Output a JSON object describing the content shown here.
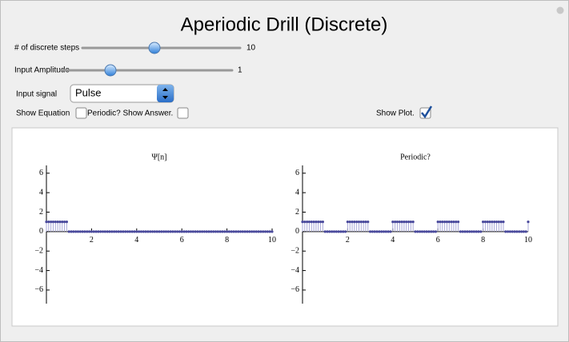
{
  "title": "Aperiodic Drill (Discrete)",
  "controls": {
    "steps_label": "# of discrete steps",
    "steps_value": 10,
    "amplitude_label": "Input Amplitude",
    "amplitude_value": 1,
    "signal_label": "Input signal",
    "signal_value": "Pulse",
    "show_equation": "Show Equation",
    "show_equation_checked": false,
    "periodic": "Periodic? Show Answer.",
    "periodic_checked": false,
    "show_plot": "Show Plot.",
    "show_plot_checked": true
  },
  "chart_data": [
    {
      "type": "stem",
      "title": "Ψ[n]",
      "color": "#4a4a9c",
      "stem_color": "#a8a8d8",
      "x": [
        0,
        0.1,
        0.2,
        0.3,
        0.4,
        0.5,
        0.6,
        0.7,
        0.8,
        0.9,
        1,
        1.1,
        1.2,
        1.3,
        1.4,
        1.5,
        1.6,
        1.7,
        1.8,
        1.9,
        2,
        2.1,
        2.2,
        2.3,
        2.4,
        2.5,
        2.6,
        2.7,
        2.8,
        2.9,
        3,
        3.1,
        3.2,
        3.3,
        3.4,
        3.5,
        3.6,
        3.7,
        3.8,
        3.9,
        4,
        4.1,
        4.2,
        4.3,
        4.4,
        4.5,
        4.6,
        4.7,
        4.8,
        4.9,
        5,
        5.1,
        5.2,
        5.3,
        5.4,
        5.5,
        5.6,
        5.7,
        5.8,
        5.9,
        6,
        6.1,
        6.2,
        6.3,
        6.4,
        6.5,
        6.6,
        6.7,
        6.8,
        6.9,
        7,
        7.1,
        7.2,
        7.3,
        7.4,
        7.5,
        7.6,
        7.7,
        7.8,
        7.9,
        8,
        8.1,
        8.2,
        8.3,
        8.4,
        8.5,
        8.6,
        8.7,
        8.8,
        8.9,
        9,
        9.1,
        9.2,
        9.3,
        9.4,
        9.5,
        9.6,
        9.7,
        9.8,
        9.9,
        10
      ],
      "values": [
        1,
        1,
        1,
        1,
        1,
        1,
        1,
        1,
        1,
        1,
        0,
        0,
        0,
        0,
        0,
        0,
        0,
        0,
        0,
        0,
        0,
        0,
        0,
        0,
        0,
        0,
        0,
        0,
        0,
        0,
        0,
        0,
        0,
        0,
        0,
        0,
        0,
        0,
        0,
        0,
        0,
        0,
        0,
        0,
        0,
        0,
        0,
        0,
        0,
        0,
        0,
        0,
        0,
        0,
        0,
        0,
        0,
        0,
        0,
        0,
        0,
        0,
        0,
        0,
        0,
        0,
        0,
        0,
        0,
        0,
        0,
        0,
        0,
        0,
        0,
        0,
        0,
        0,
        0,
        0,
        0,
        0,
        0,
        0,
        0,
        0,
        0,
        0,
        0,
        0,
        0,
        0,
        0,
        0,
        0,
        0,
        0,
        0,
        0,
        0,
        0
      ],
      "xlim": [
        0,
        10
      ],
      "ylim": [
        -7.4,
        6.8
      ],
      "xticks": [
        2,
        4,
        6,
        8,
        10
      ],
      "yticks": [
        {
          "value": -6,
          "label": "−6"
        },
        {
          "value": -4,
          "label": "−4"
        },
        {
          "value": -2,
          "label": "−2"
        },
        0,
        2,
        4,
        6
      ]
    },
    {
      "type": "stem",
      "title": "Periodic?",
      "color": "#4a4a9c",
      "stem_color": "#a8a8d8",
      "x": [
        0,
        0.1,
        0.2,
        0.3,
        0.4,
        0.5,
        0.6,
        0.7,
        0.8,
        0.9,
        1,
        1.1,
        1.2,
        1.3,
        1.4,
        1.5,
        1.6,
        1.7,
        1.8,
        1.9,
        2,
        2.1,
        2.2,
        2.3,
        2.4,
        2.5,
        2.6,
        2.7,
        2.8,
        2.9,
        3,
        3.1,
        3.2,
        3.3,
        3.4,
        3.5,
        3.6,
        3.7,
        3.8,
        3.9,
        4,
        4.1,
        4.2,
        4.3,
        4.4,
        4.5,
        4.6,
        4.7,
        4.8,
        4.9,
        5,
        5.1,
        5.2,
        5.3,
        5.4,
        5.5,
        5.6,
        5.7,
        5.8,
        5.9,
        6,
        6.1,
        6.2,
        6.3,
        6.4,
        6.5,
        6.6,
        6.7,
        6.8,
        6.9,
        7,
        7.1,
        7.2,
        7.3,
        7.4,
        7.5,
        7.6,
        7.7,
        7.8,
        7.9,
        8,
        8.1,
        8.2,
        8.3,
        8.4,
        8.5,
        8.6,
        8.7,
        8.8,
        8.9,
        9,
        9.1,
        9.2,
        9.3,
        9.4,
        9.5,
        9.6,
        9.7,
        9.8,
        9.9,
        10
      ],
      "values": [
        1,
        1,
        1,
        1,
        1,
        1,
        1,
        1,
        1,
        1,
        0,
        0,
        0,
        0,
        0,
        0,
        0,
        0,
        0,
        0,
        1,
        1,
        1,
        1,
        1,
        1,
        1,
        1,
        1,
        1,
        0,
        0,
        0,
        0,
        0,
        0,
        0,
        0,
        0,
        0,
        1,
        1,
        1,
        1,
        1,
        1,
        1,
        1,
        1,
        1,
        0,
        0,
        0,
        0,
        0,
        0,
        0,
        0,
        0,
        0,
        1,
        1,
        1,
        1,
        1,
        1,
        1,
        1,
        1,
        1,
        0,
        0,
        0,
        0,
        0,
        0,
        0,
        0,
        0,
        0,
        1,
        1,
        1,
        1,
        1,
        1,
        1,
        1,
        1,
        1,
        0,
        0,
        0,
        0,
        0,
        0,
        0,
        0,
        0,
        0,
        1
      ],
      "xlim": [
        0,
        10
      ],
      "ylim": [
        -7.4,
        6.8
      ],
      "xticks": [
        2,
        4,
        6,
        8,
        10
      ],
      "yticks": [
        {
          "value": -6,
          "label": "−6"
        },
        {
          "value": -4,
          "label": "−4"
        },
        {
          "value": -2,
          "label": "−2"
        },
        0,
        2,
        4,
        6
      ]
    }
  ]
}
